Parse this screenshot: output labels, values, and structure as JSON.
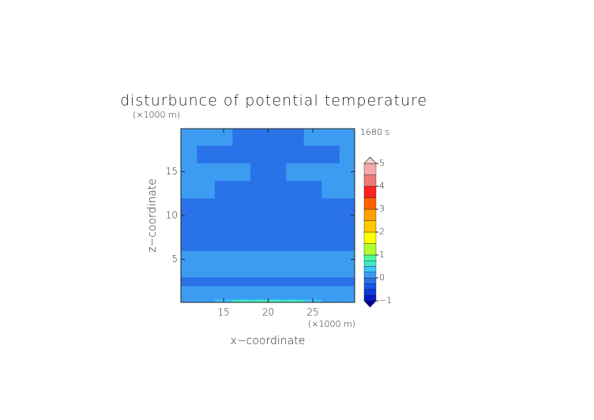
{
  "chart_data": {
    "type": "contourf",
    "title": "disturbunce of potential temperature",
    "subtitle": "1680 s",
    "x_label": "x−coordinate",
    "y_label": "z−coordinate",
    "x_unit": "(×1000 m)",
    "y_unit": "(×1000 m)",
    "xlim": [
      10.2,
      29.7
    ],
    "ylim": [
      0.1,
      19.9
    ],
    "xticks": [
      15,
      20,
      25
    ],
    "yticks": [
      5,
      10,
      15
    ],
    "x": [
      11,
      13,
      15,
      17,
      19,
      21,
      23,
      25,
      27,
      29
    ],
    "y": [
      0.2,
      0.7,
      1.5,
      2.5,
      3.5,
      5,
      7,
      9,
      11,
      13,
      15,
      17,
      19
    ],
    "values": [
      [
        0.1,
        0.1,
        0.3,
        0.6,
        0.6,
        0.6,
        0.6,
        0.3,
        0.1,
        0.1
      ],
      [
        0.1,
        0.1,
        0.1,
        0.1,
        0.1,
        0.1,
        0.1,
        0.1,
        0.1,
        0.1
      ],
      [
        0.1,
        0.1,
        0.1,
        0.1,
        0.1,
        0.1,
        0.1,
        0.1,
        0.1,
        0.1
      ],
      [
        -0.1,
        -0.1,
        -0.1,
        -0.1,
        -0.1,
        -0.1,
        -0.1,
        -0.1,
        -0.1,
        -0.1
      ],
      [
        0.1,
        0.1,
        0.1,
        0.1,
        0.1,
        0.1,
        0.1,
        0.1,
        0.1,
        0.1
      ],
      [
        0.1,
        0.1,
        0.1,
        0.1,
        0.1,
        0.1,
        0.1,
        0.1,
        0.1,
        0.1
      ],
      [
        -0.1,
        -0.1,
        -0.1,
        -0.1,
        -0.1,
        -0.1,
        -0.1,
        -0.1,
        -0.1,
        -0.1
      ],
      [
        -0.1,
        -0.1,
        -0.1,
        -0.1,
        -0.1,
        -0.1,
        -0.1,
        -0.1,
        -0.1,
        -0.1
      ],
      [
        -0.1,
        -0.1,
        -0.1,
        -0.1,
        -0.1,
        -0.1,
        -0.1,
        -0.1,
        -0.1,
        -0.1
      ],
      [
        0.1,
        0.1,
        -0.1,
        -0.1,
        -0.1,
        -0.1,
        -0.1,
        -0.1,
        0.1,
        0.1
      ],
      [
        0.1,
        0.1,
        0.1,
        0.1,
        -0.1,
        -0.1,
        0.1,
        0.1,
        0.1,
        0.1
      ],
      [
        0.1,
        -0.1,
        -0.1,
        -0.1,
        -0.1,
        -0.1,
        -0.1,
        -0.1,
        -0.1,
        0.1
      ],
      [
        0.1,
        0.1,
        0.1,
        -0.1,
        -0.1,
        -0.1,
        -0.1,
        0.1,
        0.1,
        0.1
      ]
    ],
    "levels": [
      -1,
      -0.75,
      -0.5,
      -0.25,
      0,
      0.25,
      0.5,
      0.75,
      1,
      1.5,
      2,
      2.5,
      3,
      3.5,
      4,
      4.5,
      5
    ],
    "colors": [
      "#0818c8",
      "#0a3ce0",
      "#1656ec",
      "#2a72e8",
      "#3c9cf2",
      "#40c4ff",
      "#40e8c8",
      "#48ffa0",
      "#b0ff30",
      "#ffff00",
      "#ffc800",
      "#ffa000",
      "#ff6000",
      "#ff2020",
      "#f07878",
      "#f4aaaa"
    ],
    "under_color": "#0000a0",
    "over_color": "#fad4d4",
    "cbar_ticks": [
      {
        "value": -1,
        "label": "−1"
      },
      0,
      1,
      2,
      3,
      4,
      5
    ]
  }
}
